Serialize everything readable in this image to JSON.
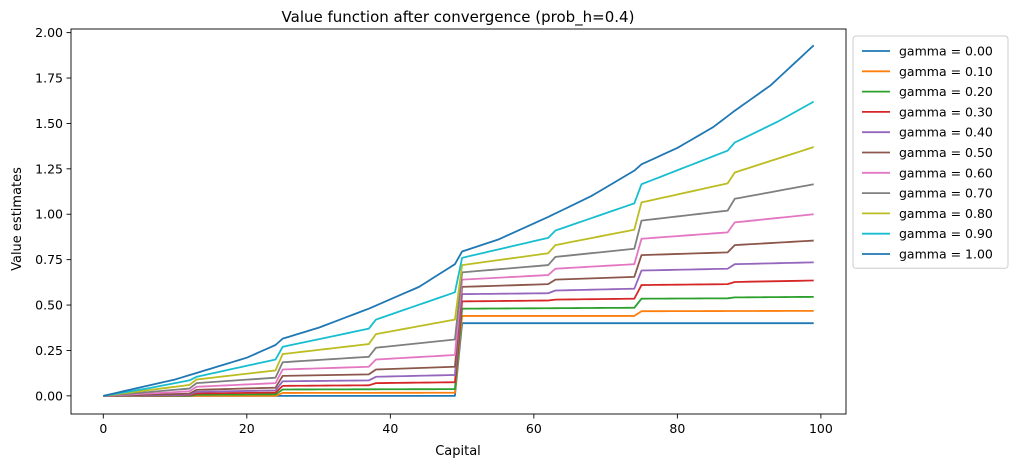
{
  "chart_data": {
    "type": "line",
    "title": "Value function after convergence (prob_h=0.4)",
    "xlabel": "Capital",
    "ylabel": "Value estimates",
    "xlim": [
      -4.5,
      103.5
    ],
    "ylim": [
      -0.1,
      2.02
    ],
    "xticks": [
      0,
      20,
      40,
      60,
      80,
      100
    ],
    "yticks": [
      0.0,
      0.25,
      0.5,
      0.75,
      1.0,
      1.25,
      1.5,
      1.75,
      2.0
    ],
    "ytick_labels": [
      "0.00",
      "0.25",
      "0.50",
      "0.75",
      "1.00",
      "1.25",
      "1.50",
      "1.75",
      "2.00"
    ],
    "legend_position": "outside-right-top",
    "grid": false,
    "x_points": [
      0,
      1,
      2,
      3,
      4,
      5,
      6,
      7,
      8,
      9,
      10,
      11,
      12,
      13,
      14,
      15,
      16,
      17,
      18,
      19,
      20,
      21,
      22,
      23,
      24,
      25,
      26,
      27,
      28,
      29,
      30,
      31,
      32,
      33,
      34,
      35,
      36,
      37,
      38,
      39,
      40,
      41,
      42,
      43,
      44,
      45,
      46,
      47,
      48,
      49,
      50,
      51,
      52,
      53,
      54,
      55,
      56,
      57,
      58,
      59,
      60,
      61,
      62,
      63,
      64,
      65,
      66,
      67,
      68,
      69,
      70,
      71,
      72,
      73,
      74,
      75,
      76,
      77,
      78,
      79,
      80,
      81,
      82,
      83,
      84,
      85,
      86,
      87,
      88,
      89,
      90,
      91,
      92,
      93,
      94,
      95,
      96,
      97,
      98,
      99
    ],
    "series": [
      {
        "name": "gamma = 0.00",
        "color": "#1f77b4",
        "anchors": [
          [
            0,
            0.0
          ],
          [
            49,
            0.0
          ],
          [
            50,
            0.4
          ],
          [
            99,
            0.4
          ]
        ]
      },
      {
        "name": "gamma = 0.10",
        "color": "#ff7f0e",
        "anchors": [
          [
            0,
            0.0
          ],
          [
            24,
            0.0
          ],
          [
            25,
            0.016
          ],
          [
            49,
            0.017
          ],
          [
            50,
            0.44
          ],
          [
            74,
            0.44
          ],
          [
            75,
            0.466
          ],
          [
            99,
            0.468
          ]
        ]
      },
      {
        "name": "gamma = 0.20",
        "color": "#2ca02c",
        "anchors": [
          [
            0,
            0.0
          ],
          [
            12,
            0.0
          ],
          [
            13,
            0.006
          ],
          [
            24,
            0.008
          ],
          [
            25,
            0.035
          ],
          [
            49,
            0.037
          ],
          [
            50,
            0.48
          ],
          [
            74,
            0.485
          ],
          [
            75,
            0.535
          ],
          [
            87,
            0.537
          ],
          [
            88,
            0.542
          ],
          [
            99,
            0.545
          ]
        ]
      },
      {
        "name": "gamma = 0.30",
        "color": "#d62728",
        "anchors": [
          [
            0,
            0.0
          ],
          [
            12,
            0.003
          ],
          [
            13,
            0.013
          ],
          [
            24,
            0.018
          ],
          [
            25,
            0.055
          ],
          [
            37,
            0.058
          ],
          [
            38,
            0.07
          ],
          [
            49,
            0.075
          ],
          [
            50,
            0.52
          ],
          [
            62,
            0.525
          ],
          [
            63,
            0.53
          ],
          [
            74,
            0.535
          ],
          [
            75,
            0.61
          ],
          [
            87,
            0.615
          ],
          [
            88,
            0.627
          ],
          [
            99,
            0.635
          ]
        ]
      },
      {
        "name": "gamma = 0.40",
        "color": "#9467bd",
        "anchors": [
          [
            0,
            0.0
          ],
          [
            12,
            0.006
          ],
          [
            13,
            0.022
          ],
          [
            24,
            0.03
          ],
          [
            25,
            0.08
          ],
          [
            37,
            0.085
          ],
          [
            38,
            0.105
          ],
          [
            49,
            0.115
          ],
          [
            50,
            0.56
          ],
          [
            62,
            0.565
          ],
          [
            63,
            0.58
          ],
          [
            74,
            0.59
          ],
          [
            75,
            0.69
          ],
          [
            87,
            0.7
          ],
          [
            88,
            0.725
          ],
          [
            99,
            0.735
          ]
        ]
      },
      {
        "name": "gamma = 0.50",
        "color": "#8c564b",
        "anchors": [
          [
            0,
            0.0
          ],
          [
            6,
            0.006
          ],
          [
            12,
            0.012
          ],
          [
            13,
            0.033
          ],
          [
            24,
            0.045
          ],
          [
            25,
            0.11
          ],
          [
            37,
            0.118
          ],
          [
            38,
            0.145
          ],
          [
            49,
            0.16
          ],
          [
            50,
            0.6
          ],
          [
            62,
            0.615
          ],
          [
            63,
            0.64
          ],
          [
            74,
            0.655
          ],
          [
            75,
            0.775
          ],
          [
            87,
            0.79
          ],
          [
            88,
            0.83
          ],
          [
            99,
            0.855
          ]
        ]
      },
      {
        "name": "gamma = 0.60",
        "color": "#e377c2",
        "anchors": [
          [
            0,
            0.0
          ],
          [
            6,
            0.012
          ],
          [
            12,
            0.025
          ],
          [
            13,
            0.05
          ],
          [
            24,
            0.07
          ],
          [
            25,
            0.145
          ],
          [
            37,
            0.16
          ],
          [
            38,
            0.2
          ],
          [
            49,
            0.225
          ],
          [
            50,
            0.64
          ],
          [
            62,
            0.665
          ],
          [
            63,
            0.7
          ],
          [
            74,
            0.725
          ],
          [
            75,
            0.865
          ],
          [
            87,
            0.9
          ],
          [
            88,
            0.955
          ],
          [
            99,
            1.0
          ]
        ]
      },
      {
        "name": "gamma = 0.70",
        "color": "#7f7f7f",
        "anchors": [
          [
            0,
            0.0
          ],
          [
            6,
            0.02
          ],
          [
            12,
            0.04
          ],
          [
            13,
            0.07
          ],
          [
            24,
            0.1
          ],
          [
            25,
            0.185
          ],
          [
            37,
            0.215
          ],
          [
            38,
            0.265
          ],
          [
            49,
            0.31
          ],
          [
            50,
            0.68
          ],
          [
            62,
            0.72
          ],
          [
            63,
            0.765
          ],
          [
            74,
            0.81
          ],
          [
            75,
            0.965
          ],
          [
            87,
            1.02
          ],
          [
            88,
            1.085
          ],
          [
            99,
            1.165
          ]
        ]
      },
      {
        "name": "gamma = 0.80",
        "color": "#bcbd22",
        "anchors": [
          [
            0,
            0.0
          ],
          [
            6,
            0.03
          ],
          [
            12,
            0.06
          ],
          [
            13,
            0.09
          ],
          [
            24,
            0.14
          ],
          [
            25,
            0.23
          ],
          [
            37,
            0.285
          ],
          [
            38,
            0.34
          ],
          [
            49,
            0.42
          ],
          [
            50,
            0.72
          ],
          [
            62,
            0.785
          ],
          [
            63,
            0.83
          ],
          [
            74,
            0.915
          ],
          [
            75,
            1.065
          ],
          [
            87,
            1.17
          ],
          [
            88,
            1.23
          ],
          [
            99,
            1.37
          ]
        ]
      },
      {
        "name": "gamma = 0.90",
        "color": "#17becf",
        "anchors": [
          [
            0,
            0.0
          ],
          [
            6,
            0.04
          ],
          [
            12,
            0.085
          ],
          [
            13,
            0.105
          ],
          [
            24,
            0.2
          ],
          [
            25,
            0.27
          ],
          [
            37,
            0.37
          ],
          [
            38,
            0.42
          ],
          [
            49,
            0.57
          ],
          [
            50,
            0.76
          ],
          [
            62,
            0.87
          ],
          [
            63,
            0.91
          ],
          [
            74,
            1.06
          ],
          [
            75,
            1.165
          ],
          [
            87,
            1.35
          ],
          [
            88,
            1.395
          ],
          [
            94,
            1.51
          ],
          [
            99,
            1.62
          ]
        ]
      },
      {
        "name": "gamma = 1.00",
        "color": "#1f77b4",
        "anchors": [
          [
            0,
            0.0
          ],
          [
            5,
            0.045
          ],
          [
            10,
            0.09
          ],
          [
            15,
            0.15
          ],
          [
            20,
            0.21
          ],
          [
            24,
            0.28
          ],
          [
            25,
            0.315
          ],
          [
            30,
            0.375
          ],
          [
            37,
            0.48
          ],
          [
            44,
            0.6
          ],
          [
            49,
            0.725
          ],
          [
            50,
            0.795
          ],
          [
            55,
            0.86
          ],
          [
            62,
            0.985
          ],
          [
            68,
            1.1
          ],
          [
            74,
            1.24
          ],
          [
            75,
            1.275
          ],
          [
            80,
            1.365
          ],
          [
            85,
            1.48
          ],
          [
            88,
            1.57
          ],
          [
            93,
            1.71
          ],
          [
            99,
            1.93
          ]
        ]
      }
    ]
  }
}
